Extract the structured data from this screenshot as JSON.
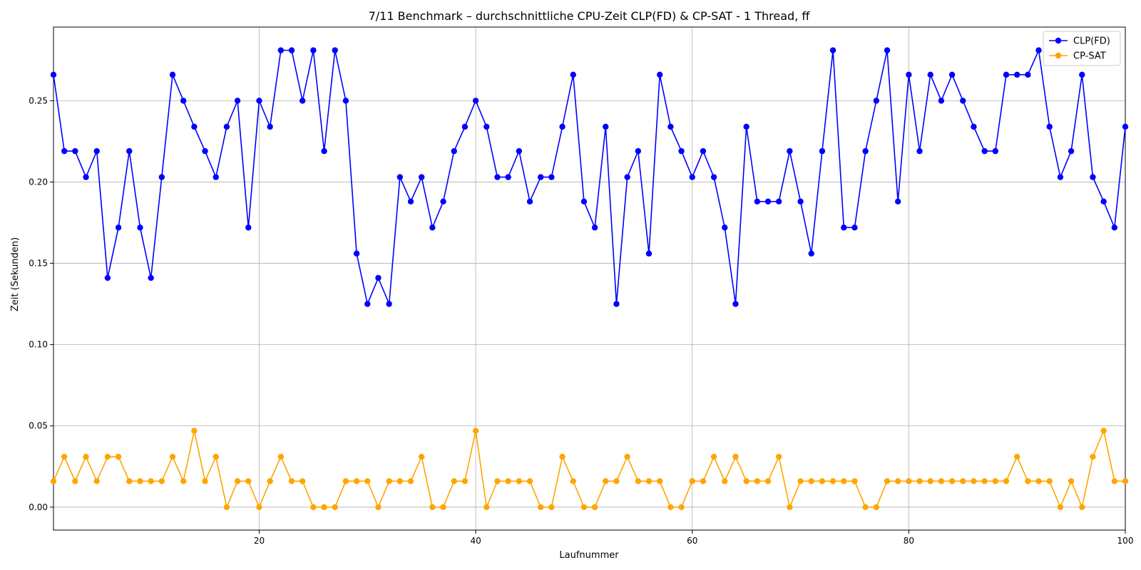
{
  "chart_data": {
    "type": "line",
    "title": "7/11 Benchmark – durchschnittliche CPU-Zeit CLP(FD) & CP-SAT - 1 Thread, ff",
    "xlabel": "Laufnummer",
    "ylabel": "Zeit (Sekunden)",
    "xlim": [
      1,
      100
    ],
    "ylim": [
      -0.0141,
      0.2953
    ],
    "xticks": [
      20,
      40,
      60,
      80,
      100
    ],
    "yticks": [
      0.0,
      0.05,
      0.1,
      0.15,
      0.2,
      0.25
    ],
    "ytick_labels": [
      "0.00",
      "0.05",
      "0.10",
      "0.15",
      "0.20",
      "0.25"
    ],
    "grid": true,
    "legend_position": "top-right",
    "x": [
      1,
      2,
      3,
      4,
      5,
      6,
      7,
      8,
      9,
      10,
      11,
      12,
      13,
      14,
      15,
      16,
      17,
      18,
      19,
      20,
      21,
      22,
      23,
      24,
      25,
      26,
      27,
      28,
      29,
      30,
      31,
      32,
      33,
      34,
      35,
      36,
      37,
      38,
      39,
      40,
      41,
      42,
      43,
      44,
      45,
      46,
      47,
      48,
      49,
      50,
      51,
      52,
      53,
      54,
      55,
      56,
      57,
      58,
      59,
      60,
      61,
      62,
      63,
      64,
      65,
      66,
      67,
      68,
      69,
      70,
      71,
      72,
      73,
      74,
      75,
      76,
      77,
      78,
      79,
      80,
      81,
      82,
      83,
      84,
      85,
      86,
      87,
      88,
      89,
      90,
      91,
      92,
      93,
      94,
      95,
      96,
      97,
      98,
      99,
      100
    ],
    "series": [
      {
        "name": "CLP(FD)",
        "color": "#0000ff",
        "values": [
          0.266,
          0.219,
          0.219,
          0.203,
          0.219,
          0.141,
          0.172,
          0.219,
          0.172,
          0.141,
          0.203,
          0.266,
          0.25,
          0.234,
          0.219,
          0.203,
          0.234,
          0.25,
          0.172,
          0.25,
          0.234,
          0.281,
          0.281,
          0.25,
          0.281,
          0.219,
          0.281,
          0.25,
          0.156,
          0.125,
          0.141,
          0.125,
          0.203,
          0.188,
          0.203,
          0.172,
          0.188,
          0.219,
          0.234,
          0.25,
          0.234,
          0.203,
          0.203,
          0.219,
          0.188,
          0.203,
          0.203,
          0.234,
          0.266,
          0.188,
          0.172,
          0.234,
          0.125,
          0.203,
          0.219,
          0.156,
          0.266,
          0.234,
          0.219,
          0.203,
          0.219,
          0.203,
          0.172,
          0.125,
          0.234,
          0.188,
          0.188,
          0.188,
          0.219,
          0.188,
          0.156,
          0.219,
          0.281,
          0.172,
          0.172,
          0.219,
          0.25,
          0.281,
          0.188,
          0.266,
          0.219,
          0.266,
          0.25,
          0.266,
          0.25,
          0.234,
          0.219,
          0.219,
          0.266,
          0.266,
          0.266,
          0.281,
          0.234,
          0.203,
          0.219,
          0.266,
          0.203,
          0.188,
          0.172,
          0.234
        ]
      },
      {
        "name": "CP-SAT",
        "color": "#ffa500",
        "values": [
          0.016,
          0.031,
          0.016,
          0.031,
          0.016,
          0.031,
          0.031,
          0.016,
          0.016,
          0.016,
          0.016,
          0.031,
          0.016,
          0.047,
          0.016,
          0.031,
          0.0,
          0.016,
          0.016,
          0.0,
          0.016,
          0.031,
          0.016,
          0.016,
          0.0,
          0.0,
          0.0,
          0.016,
          0.016,
          0.016,
          0.0,
          0.016,
          0.016,
          0.016,
          0.031,
          0.0,
          0.0,
          0.016,
          0.016,
          0.047,
          0.0,
          0.016,
          0.016,
          0.016,
          0.016,
          0.0,
          0.0,
          0.031,
          0.016,
          0.0,
          0.0,
          0.016,
          0.016,
          0.031,
          0.016,
          0.016,
          0.016,
          0.0,
          0.0,
          0.016,
          0.016,
          0.031,
          0.016,
          0.031,
          0.016,
          0.016,
          0.016,
          0.031,
          0.0,
          0.016,
          0.016,
          0.016,
          0.016,
          0.016,
          0.016,
          0.0,
          0.0,
          0.016,
          0.016,
          0.016,
          0.016,
          0.016,
          0.016,
          0.016,
          0.016,
          0.016,
          0.016,
          0.016,
          0.016,
          0.031,
          0.016,
          0.016,
          0.016,
          0.0,
          0.016,
          0.0,
          0.031,
          0.047,
          0.016,
          0.016
        ]
      }
    ]
  }
}
